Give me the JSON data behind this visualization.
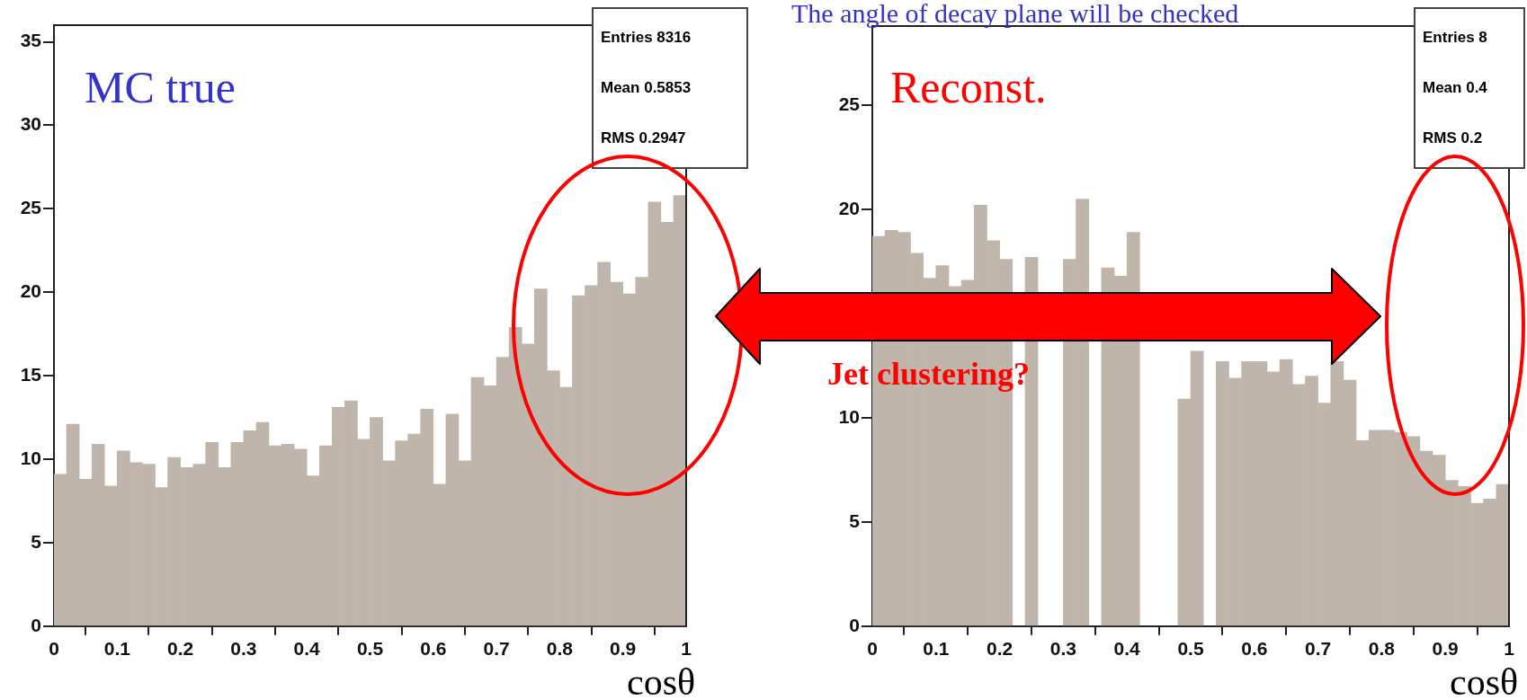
{
  "chart_data": [
    {
      "type": "histogram",
      "xlabel": "cosθ",
      "color": "#bfb5ab",
      "bins": [
        0,
        0.02,
        0.04,
        0.06,
        0.08,
        0.1,
        0.12,
        0.14,
        0.16,
        0.18,
        0.2,
        0.22,
        0.24,
        0.26,
        0.28,
        0.3,
        0.32,
        0.34,
        0.36,
        0.38,
        0.4,
        0.42,
        0.44,
        0.46,
        0.48,
        0.5,
        0.52,
        0.54,
        0.56,
        0.58,
        0.6,
        0.62,
        0.64,
        0.66,
        0.68,
        0.7,
        0.72,
        0.74,
        0.76,
        0.78,
        0.8,
        0.82,
        0.84,
        0.86,
        0.88,
        0.9,
        0.92,
        0.94,
        0.96,
        0.98,
        1
      ],
      "values": [
        9.1,
        12.1,
        8.8,
        10.9,
        8.4,
        10.5,
        9.8,
        9.7,
        8.3,
        10.1,
        9.5,
        9.7,
        11.0,
        9.5,
        11.0,
        11.7,
        12.2,
        10.8,
        10.9,
        10.6,
        9.0,
        10.8,
        13.1,
        13.5,
        11.2,
        12.5,
        9.9,
        11.1,
        11.5,
        13.0,
        8.5,
        12.7,
        9.9,
        14.9,
        14.4,
        16.1,
        17.9,
        16.9,
        20.2,
        15.3,
        14.3,
        19.8,
        20.4,
        21.8,
        20.6,
        19.9,
        20.9,
        25.4,
        24.2,
        25.8
      ],
      "xlim": [
        0,
        1
      ],
      "xticks": [
        0,
        0.1,
        0.2,
        0.3,
        0.4,
        0.5,
        0.6,
        0.7,
        0.8,
        0.9,
        1
      ],
      "ylim": [
        0,
        36
      ],
      "yticks": [
        0,
        5,
        10,
        15,
        20,
        25,
        30,
        35
      ],
      "grid": false,
      "annotations": [
        "MC true",
        "Entries 8316",
        "Mean 0.5853",
        "RMS 0.2947"
      ]
    },
    {
      "type": "histogram",
      "title": "The angle of decay plane will be checked",
      "xlabel": "cosθ",
      "color": "#bfb5ab",
      "bins": [
        0,
        0.02,
        0.04,
        0.06,
        0.08,
        0.1,
        0.12,
        0.14,
        0.16,
        0.18,
        0.2,
        0.22,
        0.24,
        0.26,
        0.28,
        0.3,
        0.32,
        0.34,
        0.36,
        0.38,
        0.4,
        0.42,
        0.44,
        0.46,
        0.48,
        0.5,
        0.52,
        0.54,
        0.56,
        0.58,
        0.6,
        0.62,
        0.64,
        0.66,
        0.68,
        0.7,
        0.72,
        0.74,
        0.76,
        0.78,
        0.8,
        0.82,
        0.84,
        0.86,
        0.88,
        0.9,
        0.92,
        0.94,
        0.96,
        0.98,
        1
      ],
      "values": [
        18.7,
        19.0,
        18.9,
        17.9,
        16.7,
        17.3,
        16.3,
        16.6,
        20.2,
        18.5,
        17.6,
        null,
        17.7,
        null,
        null,
        17.6,
        20.5,
        null,
        17.2,
        16.8,
        18.9,
        null,
        null,
        null,
        10.9,
        13.2,
        null,
        12.7,
        11.9,
        12.7,
        12.7,
        12.2,
        12.8,
        11.6,
        12.0,
        10.7,
        12.7,
        11.8,
        8.9,
        9.4,
        9.4,
        9.3,
        9.1,
        8.4,
        8.2,
        7.0,
        6.7,
        5.9,
        6.1,
        6.8
      ],
      "xlim": [
        0,
        1
      ],
      "xticks": [
        0,
        0.1,
        0.2,
        0.3,
        0.4,
        0.5,
        0.6,
        0.7,
        0.8,
        0.9,
        1
      ],
      "ylim": [
        0,
        28.8
      ],
      "yticks": [
        0,
        5,
        10,
        20,
        25
      ],
      "grid": false,
      "annotations": [
        "Reconst.",
        "Jet clustering?",
        "Entries 8",
        "Mean 0.4",
        "RMS 0.2"
      ]
    }
  ]
}
